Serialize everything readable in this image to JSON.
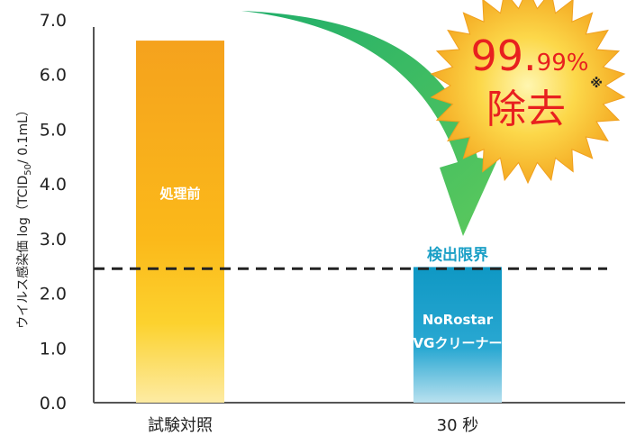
{
  "chart_data": {
    "type": "bar",
    "categories": [
      "試験対照",
      "30 秒"
    ],
    "values": [
      6.62,
      2.48
    ],
    "ylabel": "ウイルス感染価 log（TCID50/ 0.1mL）",
    "ylabel_parts": {
      "pre": "ウイルス感染価 log（TCID",
      "sub": "50",
      "post": "/ 0.1mL）"
    },
    "ylim": [
      0,
      7
    ],
    "yticks": [
      "0.0",
      "1.0",
      "2.0",
      "3.0",
      "4.0",
      "5.0",
      "6.0",
      "7.0"
    ],
    "grid": false,
    "bar_labels": [
      [
        "処理前"
      ],
      [
        "NoRostar",
        "VGクリーナー"
      ]
    ],
    "bar_colors": [
      "#f5a51e",
      "#149cc6"
    ],
    "detection_limit": {
      "value": 2.45,
      "label": "検出限界"
    }
  },
  "badge": {
    "percent_big": "99.",
    "percent_small": "99",
    "percent_sign": "%",
    "removal": "除去",
    "note_mark": "※"
  }
}
